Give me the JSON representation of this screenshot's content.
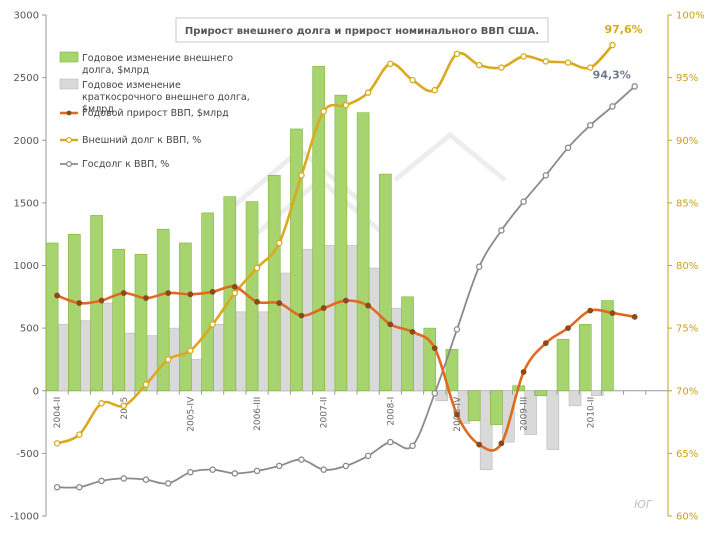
{
  "chart_data": {
    "type": "bar",
    "title": "Прирост внешнего долга и прирост номинального ВВП США.",
    "watermark": "ЮГ",
    "x": [
      "2004-II",
      "2004-III",
      "2004-IV",
      "2005-I",
      "2005-II",
      "2005-III",
      "2005-IV",
      "2006-I",
      "2006-II",
      "2006-III",
      "2006-IV",
      "2007-I",
      "2007-II",
      "2007-III",
      "2007-IV",
      "2008-I",
      "2008-II",
      "2008-III",
      "2008-IV",
      "2009-I",
      "2009-II",
      "2009-III",
      "2009-IV",
      "2010-I",
      "2010-II",
      "2010-III",
      "2010-IV",
      "2011-I"
    ],
    "x_tick_labels": [
      {
        "index": 0,
        "label": "2004-II"
      },
      {
        "index": 3,
        "label": "2005"
      },
      {
        "index": 6,
        "label": "2005-IV"
      },
      {
        "index": 9,
        "label": "2006-III"
      },
      {
        "index": 12,
        "label": "2007-II"
      },
      {
        "index": 15,
        "label": "2008-I"
      },
      {
        "index": 18,
        "label": "2008-IV"
      },
      {
        "index": 21,
        "label": "2009-III"
      },
      {
        "index": 24,
        "label": "2010-II"
      }
    ],
    "y_left": {
      "min": -1000,
      "max": 3000,
      "step": 500
    },
    "y_right": {
      "min": 60,
      "max": 100,
      "step": 5,
      "unit": "%"
    },
    "grid": false,
    "legend_position": "top-left",
    "series": [
      {
        "name": "Годовое изменение внешнего долга, $млрд",
        "type": "bar",
        "axis": "left",
        "color": "#a8d46f",
        "stroke": "#7fb43f",
        "values": [
          1180,
          1250,
          1400,
          1130,
          1090,
          1290,
          1180,
          1420,
          1550,
          1510,
          1720,
          2090,
          2590,
          2360,
          2220,
          1730,
          750,
          500,
          330,
          -240,
          -270,
          40,
          -40,
          410,
          530,
          720,
          null,
          null
        ]
      },
      {
        "name": "Годовое изменение краткосрочного внешнего долга, $млрд",
        "type": "bar",
        "axis": "left",
        "color": "#d9d9d9",
        "stroke": "#bbbbbb",
        "values": [
          530,
          560,
          700,
          460,
          440,
          500,
          250,
          530,
          630,
          630,
          940,
          1130,
          1160,
          1160,
          980,
          660,
          440,
          -80,
          -260,
          -630,
          -410,
          -350,
          -470,
          -120,
          -40,
          null,
          null,
          null
        ]
      },
      {
        "name": "Годовой прирост ВВП, $млрд",
        "type": "line",
        "axis": "left",
        "color": "#e06a1f",
        "values": [
          760,
          700,
          720,
          780,
          740,
          780,
          770,
          790,
          830,
          710,
          700,
          600,
          660,
          720,
          680,
          530,
          470,
          340,
          -190,
          -430,
          -420,
          150,
          380,
          500,
          640,
          620,
          590,
          null
        ]
      },
      {
        "name": "Внешний долг к ВВП, %",
        "type": "line",
        "axis": "right",
        "color": "#d9aa1e",
        "values": [
          65.8,
          66.5,
          69.0,
          68.8,
          70.5,
          72.5,
          73.2,
          75.3,
          77.8,
          79.8,
          81.8,
          87.2,
          92.3,
          92.8,
          93.8,
          96.1,
          94.8,
          94.0,
          96.9,
          96.0,
          95.8,
          96.7,
          96.3,
          96.2,
          95.8,
          97.6,
          null,
          null
        ],
        "end_label": "97,6%"
      },
      {
        "name": "Госдолг к ВВП, %",
        "type": "line",
        "axis": "right",
        "color": "#8a8a8a",
        "values": [
          62.3,
          62.3,
          62.8,
          63.0,
          62.9,
          62.6,
          63.5,
          63.7,
          63.4,
          63.6,
          64.0,
          64.5,
          63.7,
          64.0,
          64.8,
          65.9,
          65.6,
          69.8,
          74.9,
          79.9,
          82.8,
          85.1,
          87.2,
          89.4,
          91.2,
          92.7,
          94.3,
          null
        ],
        "end_label": "94,3%"
      }
    ]
  }
}
